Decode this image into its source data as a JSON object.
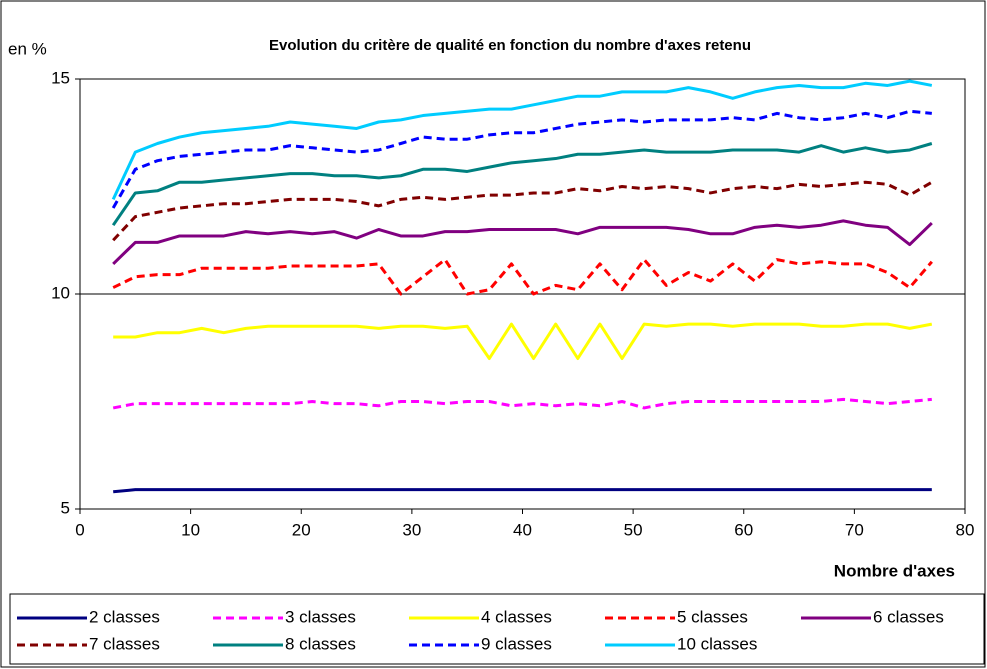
{
  "chart_data": {
    "type": "line",
    "title": "Evolution du critère de qualité en fonction du nombre d'axes retenu",
    "y_label": "en %",
    "x_label": "Nombre d'axes",
    "xlim": [
      0,
      80
    ],
    "xticks": [
      0,
      10,
      20,
      30,
      40,
      50,
      60,
      70,
      80
    ],
    "ylim": [
      5,
      15
    ],
    "yticks": [
      5,
      10,
      15
    ],
    "grid": true,
    "x": [
      3,
      5,
      7,
      9,
      11,
      13,
      15,
      17,
      19,
      21,
      23,
      25,
      27,
      29,
      31,
      33,
      35,
      37,
      39,
      41,
      43,
      45,
      47,
      49,
      51,
      53,
      55,
      57,
      59,
      61,
      63,
      65,
      67,
      69,
      71,
      73,
      75,
      77
    ],
    "series": [
      {
        "name": "2 classes",
        "color": "#000080",
        "dashed": false,
        "values": [
          5.4,
          5.45,
          5.45,
          5.45,
          5.45,
          5.45,
          5.45,
          5.45,
          5.45,
          5.45,
          5.45,
          5.45,
          5.45,
          5.45,
          5.45,
          5.45,
          5.45,
          5.45,
          5.45,
          5.45,
          5.45,
          5.45,
          5.45,
          5.45,
          5.45,
          5.45,
          5.45,
          5.45,
          5.45,
          5.45,
          5.45,
          5.45,
          5.45,
          5.45,
          5.45,
          5.45,
          5.45,
          5.45
        ]
      },
      {
        "name": "3 classes",
        "color": "#ff00ff",
        "dashed": true,
        "values": [
          7.35,
          7.45,
          7.45,
          7.45,
          7.45,
          7.45,
          7.45,
          7.45,
          7.45,
          7.5,
          7.45,
          7.45,
          7.4,
          7.5,
          7.5,
          7.45,
          7.5,
          7.5,
          7.4,
          7.45,
          7.4,
          7.45,
          7.4,
          7.5,
          7.35,
          7.45,
          7.5,
          7.5,
          7.5,
          7.5,
          7.5,
          7.5,
          7.5,
          7.55,
          7.5,
          7.45,
          7.5,
          7.55
        ]
      },
      {
        "name": "4 classes",
        "color": "#ffff00",
        "dashed": false,
        "values": [
          9.0,
          9.0,
          9.1,
          9.1,
          9.2,
          9.1,
          9.2,
          9.25,
          9.25,
          9.25,
          9.25,
          9.25,
          9.2,
          9.25,
          9.25,
          9.2,
          9.25,
          8.5,
          9.3,
          8.5,
          9.3,
          8.5,
          9.3,
          8.5,
          9.3,
          9.25,
          9.3,
          9.3,
          9.25,
          9.3,
          9.3,
          9.3,
          9.25,
          9.25,
          9.3,
          9.3,
          9.2,
          9.3
        ]
      },
      {
        "name": "5 classes",
        "color": "#ff0000",
        "dashed": true,
        "values": [
          10.15,
          10.4,
          10.45,
          10.45,
          10.6,
          10.6,
          10.6,
          10.6,
          10.65,
          10.65,
          10.65,
          10.65,
          10.7,
          10.0,
          10.4,
          10.8,
          10.0,
          10.1,
          10.7,
          10.0,
          10.2,
          10.1,
          10.7,
          10.1,
          10.8,
          10.2,
          10.5,
          10.3,
          10.7,
          10.3,
          10.8,
          10.7,
          10.75,
          10.7,
          10.7,
          10.5,
          10.15,
          10.75
        ]
      },
      {
        "name": "6 classes",
        "color": "#800080",
        "dashed": false,
        "values": [
          10.7,
          11.2,
          11.2,
          11.35,
          11.35,
          11.35,
          11.45,
          11.4,
          11.45,
          11.4,
          11.45,
          11.3,
          11.5,
          11.35,
          11.35,
          11.45,
          11.45,
          11.5,
          11.5,
          11.5,
          11.5,
          11.4,
          11.55,
          11.55,
          11.55,
          11.55,
          11.5,
          11.4,
          11.4,
          11.55,
          11.6,
          11.55,
          11.6,
          11.7,
          11.6,
          11.55,
          11.15,
          11.65
        ]
      },
      {
        "name": "7 classes",
        "color": "#800000",
        "dashed": true,
        "values": [
          11.25,
          11.8,
          11.9,
          12.0,
          12.05,
          12.1,
          12.1,
          12.15,
          12.2,
          12.2,
          12.2,
          12.15,
          12.05,
          12.2,
          12.25,
          12.2,
          12.25,
          12.3,
          12.3,
          12.35,
          12.35,
          12.45,
          12.4,
          12.5,
          12.45,
          12.5,
          12.45,
          12.35,
          12.45,
          12.5,
          12.45,
          12.55,
          12.5,
          12.55,
          12.6,
          12.55,
          12.3,
          12.6
        ]
      },
      {
        "name": "8 classes",
        "color": "#008080",
        "dashed": false,
        "values": [
          11.6,
          12.35,
          12.4,
          12.6,
          12.6,
          12.65,
          12.7,
          12.75,
          12.8,
          12.8,
          12.75,
          12.75,
          12.7,
          12.75,
          12.9,
          12.9,
          12.85,
          12.95,
          13.05,
          13.1,
          13.15,
          13.25,
          13.25,
          13.3,
          13.35,
          13.3,
          13.3,
          13.3,
          13.35,
          13.35,
          13.35,
          13.3,
          13.45,
          13.3,
          13.4,
          13.3,
          13.35,
          13.5
        ]
      },
      {
        "name": "9 classes",
        "color": "#0000ff",
        "dashed": true,
        "values": [
          12.0,
          12.9,
          13.1,
          13.2,
          13.25,
          13.3,
          13.35,
          13.35,
          13.45,
          13.4,
          13.35,
          13.3,
          13.35,
          13.5,
          13.65,
          13.6,
          13.6,
          13.7,
          13.75,
          13.75,
          13.85,
          13.95,
          14.0,
          14.05,
          14.0,
          14.05,
          14.05,
          14.05,
          14.1,
          14.05,
          14.2,
          14.1,
          14.05,
          14.1,
          14.2,
          14.1,
          14.25,
          14.2
        ]
      },
      {
        "name": "10 classes",
        "color": "#00ccff",
        "dashed": false,
        "values": [
          12.2,
          13.3,
          13.5,
          13.65,
          13.75,
          13.8,
          13.85,
          13.9,
          14.0,
          13.95,
          13.9,
          13.85,
          14.0,
          14.05,
          14.15,
          14.2,
          14.25,
          14.3,
          14.3,
          14.4,
          14.5,
          14.6,
          14.6,
          14.7,
          14.7,
          14.7,
          14.8,
          14.7,
          14.55,
          14.7,
          14.8,
          14.85,
          14.8,
          14.8,
          14.9,
          14.85,
          14.95,
          14.85
        ]
      }
    ]
  }
}
